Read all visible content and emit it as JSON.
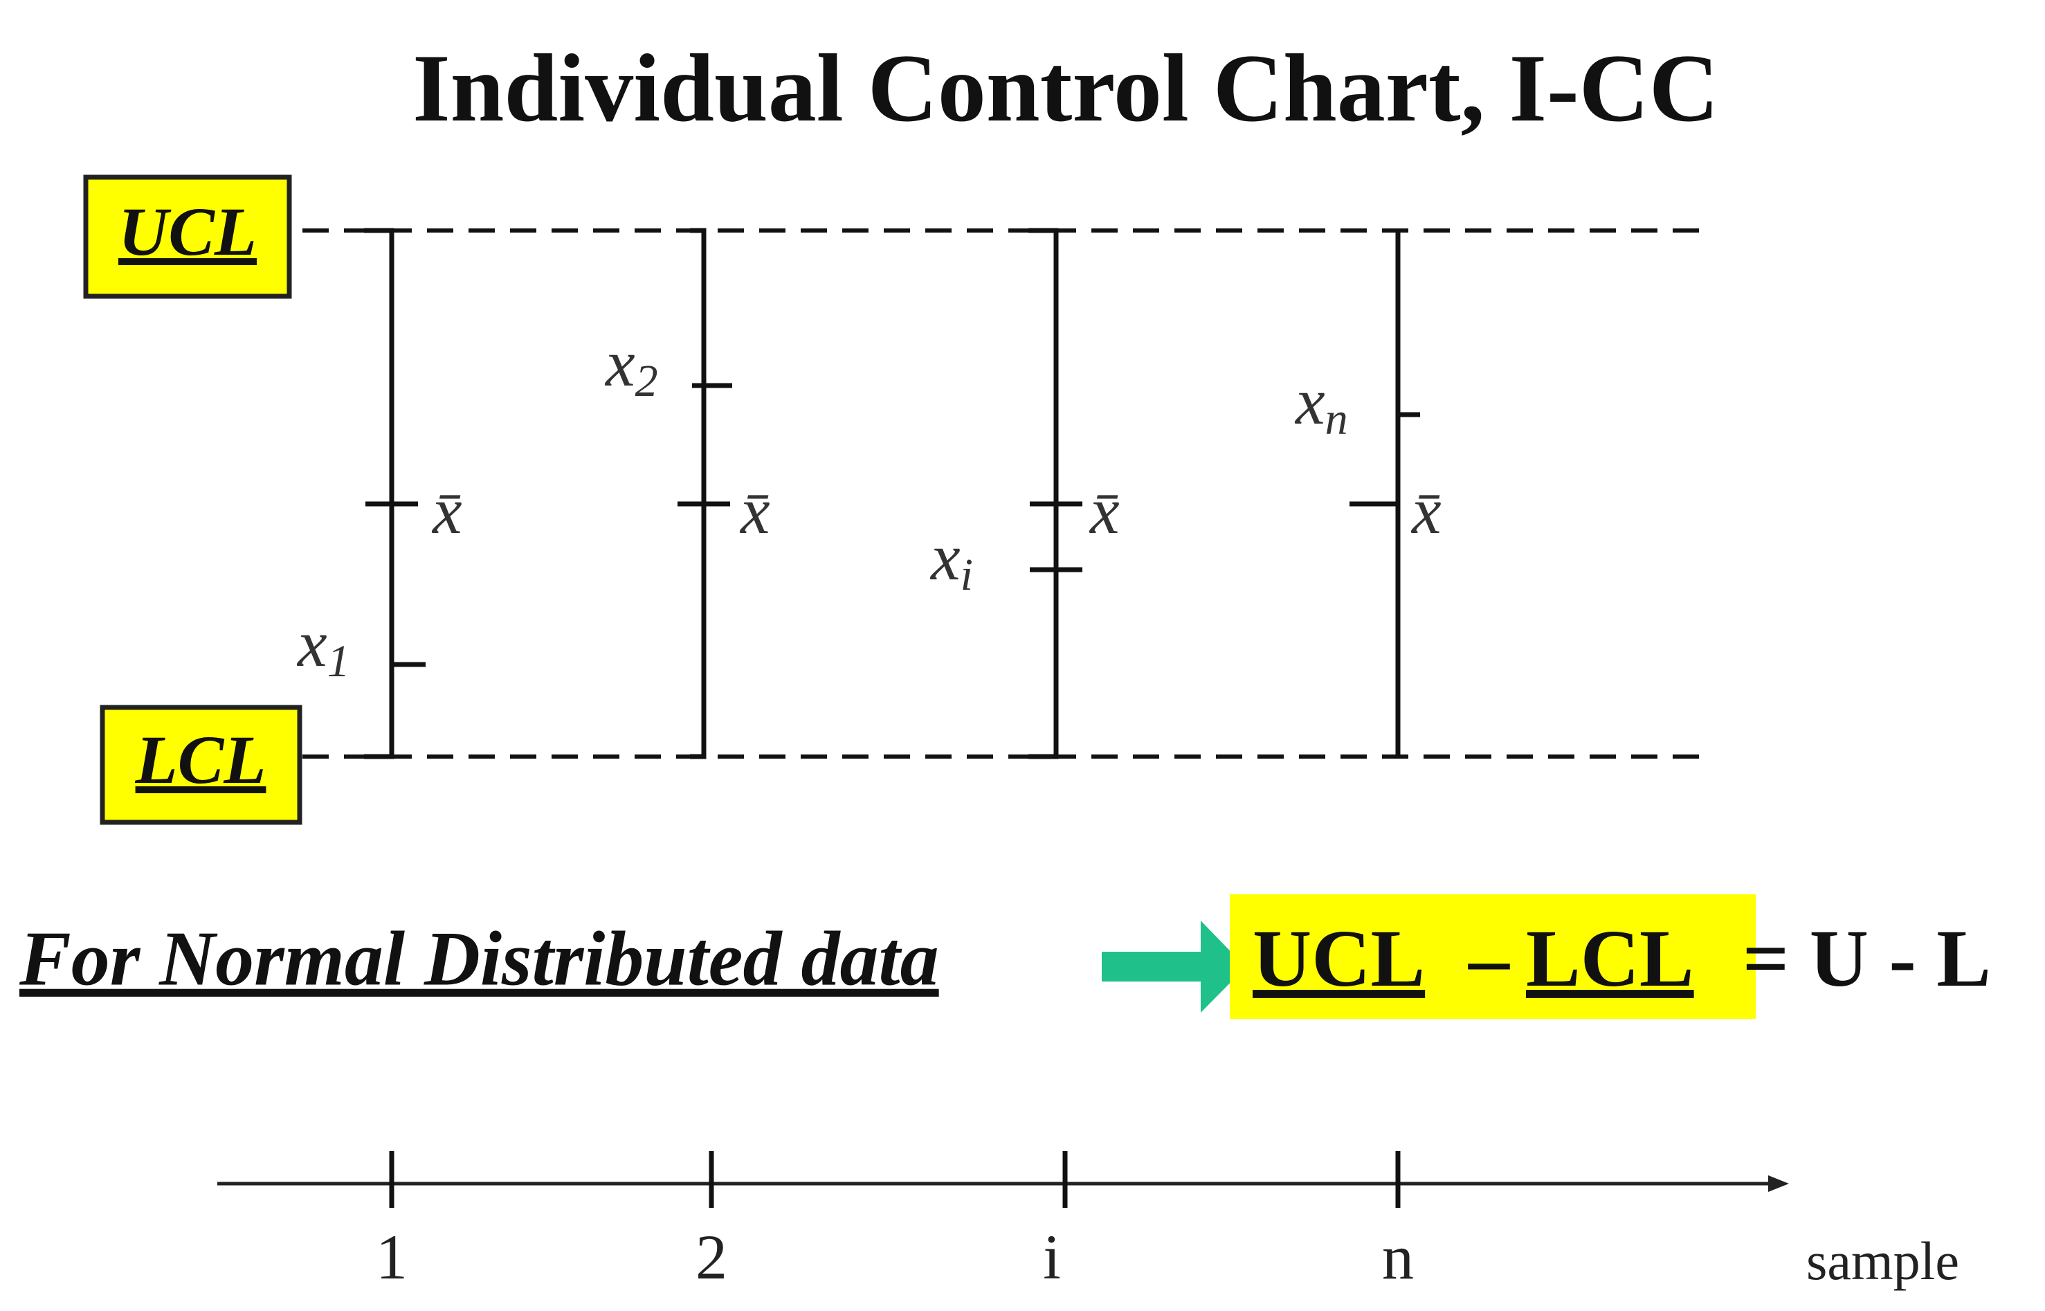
{
  "title": "Individual Control Chart, I-CC",
  "limits": {
    "upper": "UCL",
    "lower": "LCL"
  },
  "samples": [
    {
      "tick": "1",
      "point": {
        "base": "x",
        "sub": "1"
      },
      "mean": "x̄"
    },
    {
      "tick": "2",
      "point": {
        "base": "x",
        "sub": "2"
      },
      "mean": "x̄"
    },
    {
      "tick": "i",
      "point": {
        "base": "x",
        "sub": "i"
      },
      "mean": "x̄"
    },
    {
      "tick": "n",
      "point": {
        "base": "x",
        "sub": "n"
      },
      "mean": "x̄"
    }
  ],
  "formula": {
    "lead": "For Normal Distributed data",
    "upper": "UCL",
    "minus": "–",
    "lower": "LCL",
    "rhs": "= U - L"
  },
  "axis_label": "sample"
}
